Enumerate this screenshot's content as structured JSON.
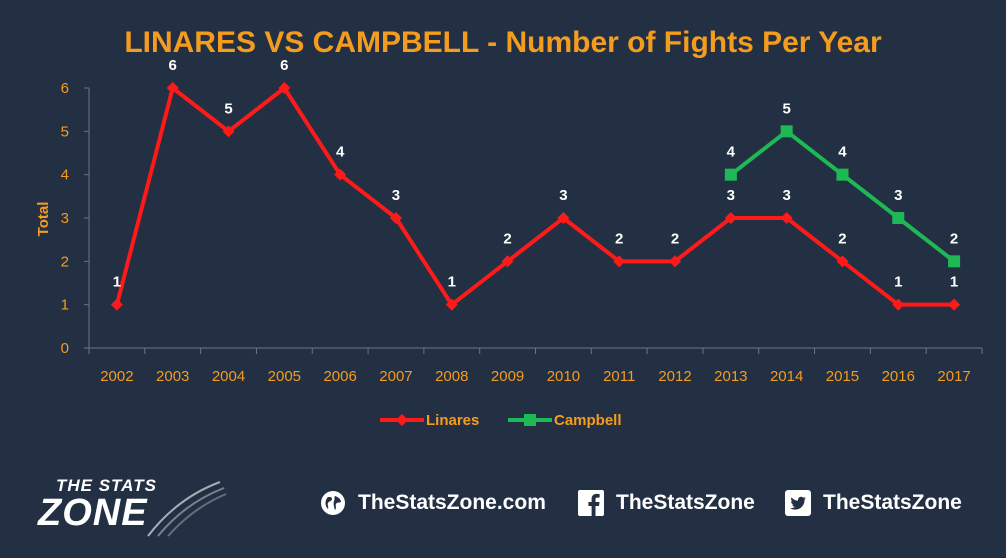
{
  "chart_data": {
    "type": "line",
    "title": "LINARES VS CAMPBELL - Number of Fights Per Year",
    "xlabel": "",
    "ylabel": "Total",
    "ylim": [
      0,
      6
    ],
    "yticks": [
      0,
      1,
      2,
      3,
      4,
      5,
      6
    ],
    "categories": [
      "2002",
      "2003",
      "2004",
      "2005",
      "2006",
      "2007",
      "2008",
      "2009",
      "2010",
      "2011",
      "2012",
      "2013",
      "2014",
      "2015",
      "2016",
      "2017"
    ],
    "grid": false,
    "legend": "bottom",
    "series": [
      {
        "name": "Linares",
        "color": "#ff1a1a",
        "marker": "diamond",
        "values": [
          1,
          6,
          5,
          6,
          4,
          3,
          1,
          2,
          3,
          2,
          2,
          3,
          3,
          2,
          1,
          1
        ]
      },
      {
        "name": "Campbell",
        "color": "#1db954",
        "marker": "square",
        "values": [
          null,
          null,
          null,
          null,
          null,
          null,
          null,
          null,
          null,
          null,
          null,
          4,
          5,
          4,
          3,
          2
        ]
      }
    ]
  },
  "footer": {
    "logo_top": "THE STATS",
    "logo_bottom": "ZONE",
    "website": "TheStatsZone.com",
    "facebook": "TheStatsZone",
    "twitter": "TheStatsZone",
    "website_icon": "globe-icon",
    "facebook_icon": "facebook-icon",
    "twitter_icon": "twitter-icon"
  }
}
